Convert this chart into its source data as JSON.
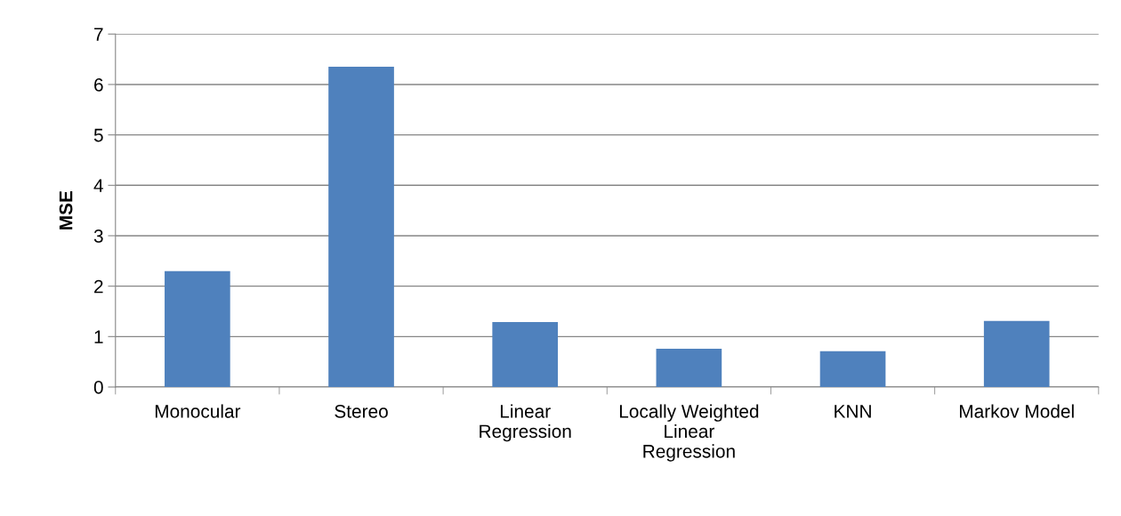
{
  "chart_data": {
    "type": "bar",
    "ylabel": "MSE",
    "categories": [
      "Monocular",
      "Stereo",
      "Linear Regression",
      "Locally Weighted Linear Regression",
      "KNN",
      "Markov Model"
    ],
    "values": [
      2.3,
      6.35,
      1.29,
      0.76,
      0.71,
      1.31
    ],
    "color": "#4f81bd",
    "ylim": [
      0,
      7
    ],
    "yticks": [
      0,
      1,
      2,
      3,
      4,
      5,
      6,
      7
    ],
    "grid": "y"
  }
}
